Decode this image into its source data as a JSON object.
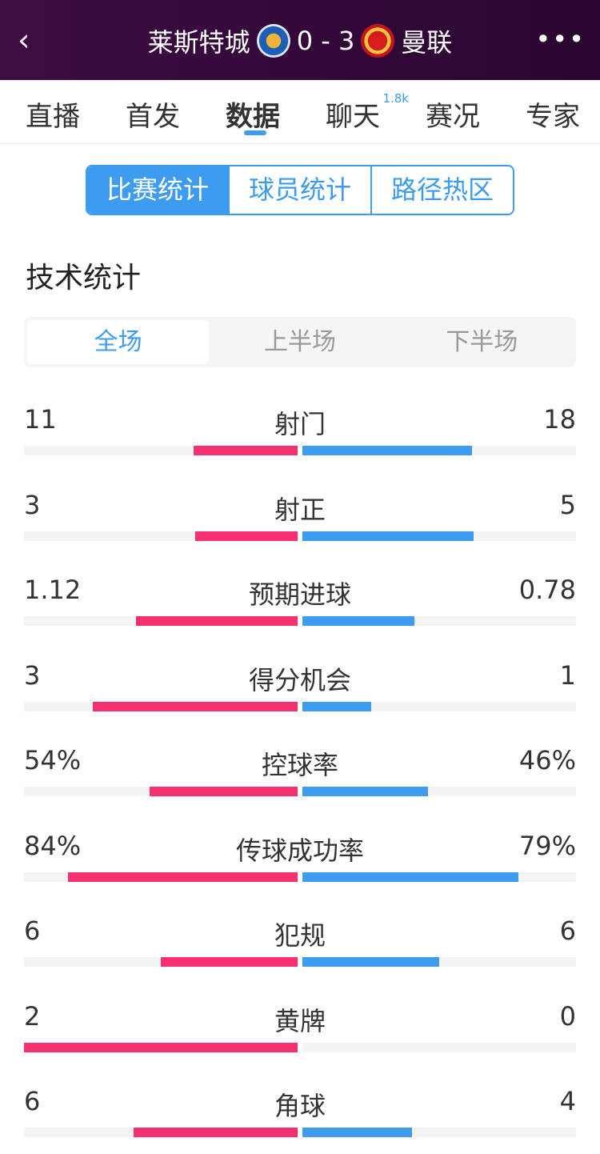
{
  "header": {
    "back_icon": "chevron-left-icon",
    "home": "莱斯特城",
    "score": "0 - 3",
    "away": "曼联",
    "more_icon": "more-dots-icon"
  },
  "tabs": [
    {
      "label": "直播"
    },
    {
      "label": "首发"
    },
    {
      "label": "数据",
      "active": true
    },
    {
      "label": "聊天",
      "badge": "1.8k"
    },
    {
      "label": "赛况"
    },
    {
      "label": "专家"
    }
  ],
  "segments": [
    "比赛统计",
    "球员统计",
    "路径热区"
  ],
  "section_title": "技术统计",
  "periods": [
    "全场",
    "上半场",
    "下半场"
  ],
  "colors": {
    "home": "#f5306e",
    "away": "#3d9cf0",
    "header": "#3d0c43"
  },
  "stats": [
    {
      "label": "射门",
      "home": "11",
      "away": "18"
    },
    {
      "label": "射正",
      "home": "3",
      "away": "5"
    },
    {
      "label": "预期进球",
      "home": "1.12",
      "away": "0.78"
    },
    {
      "label": "得分机会",
      "home": "3",
      "away": "1"
    },
    {
      "label": "控球率",
      "home": "54%",
      "away": "46%"
    },
    {
      "label": "传球成功率",
      "home": "84%",
      "away": "79%"
    },
    {
      "label": "犯规",
      "home": "6",
      "away": "6"
    },
    {
      "label": "黄牌",
      "home": "2",
      "away": "0"
    },
    {
      "label": "角球",
      "home": "6",
      "away": "4"
    }
  ]
}
